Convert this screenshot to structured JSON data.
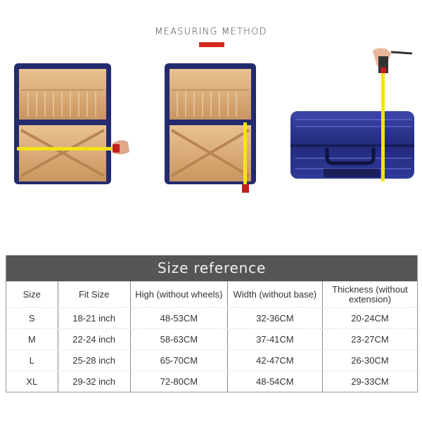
{
  "heading": {
    "title": "MEASURING METHOD",
    "accent_color": "#d42a1e"
  },
  "photos": [
    {
      "subject": "open suitcase measured horizontally (width)"
    },
    {
      "subject": "open suitcase measured vertically (height)"
    },
    {
      "subject": "closed suitcase measured for thickness"
    }
  ],
  "size_table": {
    "title": "Size reference",
    "header_color": "#555555",
    "columns": [
      "Size",
      "Fit Size",
      "High (without wheels)",
      "Width (without base)",
      "Thickness (without extension)"
    ],
    "rows": [
      [
        "S",
        "18-21 inch",
        "48-53CM",
        "32-36CM",
        "20-24CM"
      ],
      [
        "M",
        "22-24 inch",
        "58-63CM",
        "37-41CM",
        "23-27CM"
      ],
      [
        "L",
        "25-28 inch",
        "65-70CM",
        "42-47CM",
        "26-30CM"
      ],
      [
        "XL",
        "29-32 inch",
        "72-80CM",
        "48-54CM",
        "29-33CM"
      ]
    ]
  }
}
